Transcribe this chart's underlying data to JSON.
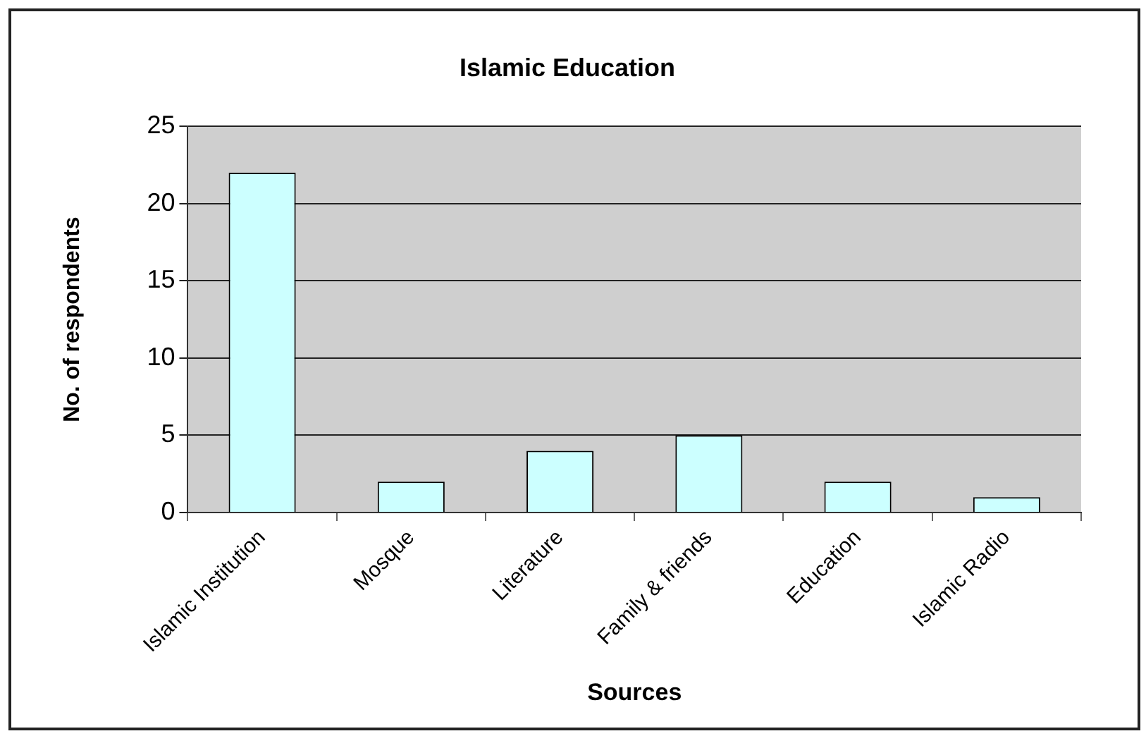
{
  "chart_data": {
    "type": "bar",
    "title": "Islamic Education",
    "xlabel": "Sources",
    "ylabel": "No. of respondents",
    "categories": [
      "Islamic Institution",
      "Mosque",
      "Literature",
      "Family & friends",
      "Education",
      "Islamic Radio"
    ],
    "values": [
      22,
      2,
      4,
      5,
      2,
      1
    ],
    "color": "#ccffff",
    "ylim": [
      0,
      25
    ],
    "yticks": [
      0,
      5,
      10,
      15,
      20,
      25
    ],
    "grid": "y"
  }
}
